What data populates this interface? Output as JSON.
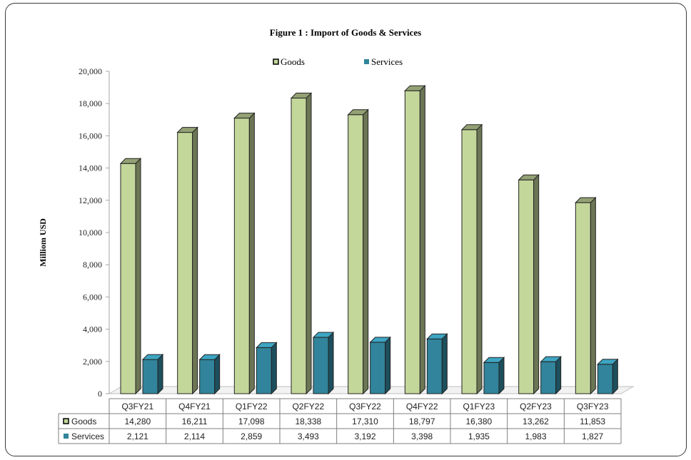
{
  "chart_data": {
    "type": "bar",
    "title": "Figure 1 : Import of Goods & Services",
    "xlabel": "",
    "ylabel": "Milliom USD",
    "ylim": [
      0,
      20000
    ],
    "yticks": [
      0,
      2000,
      4000,
      6000,
      8000,
      10000,
      12000,
      14000,
      16000,
      18000,
      20000
    ],
    "ytick_labels": [
      "0",
      "2,000",
      "4,000",
      "6,000",
      "8,000",
      "10,000",
      "12,000",
      "14,000",
      "16,000",
      "18,000",
      "20,000"
    ],
    "categories": [
      "Q3FY21",
      "Q4FY21",
      "Q1FY22",
      "Q2FY22",
      "Q3FY22",
      "Q4FY22",
      "Q1FY23",
      "Q2FY23",
      "Q3FY23"
    ],
    "series": [
      {
        "name": "Goods",
        "color": "#c4d79b",
        "values": [
          14280,
          16211,
          17098,
          18338,
          17310,
          18797,
          16380,
          13262,
          11853
        ],
        "value_labels": [
          "14,280",
          "16,211",
          "17,098",
          "18,338",
          "17,310",
          "18,797",
          "16,380",
          "13,262",
          "11,853"
        ]
      },
      {
        "name": "Services",
        "color": "#31849b",
        "values": [
          2121,
          2114,
          2859,
          3493,
          3192,
          3398,
          1935,
          1983,
          1827
        ],
        "value_labels": [
          "2,121",
          "2,114",
          "2,859",
          "3,493",
          "3,192",
          "3,398",
          "1,935",
          "1,983",
          "1,827"
        ]
      }
    ],
    "legend": "top-center",
    "grid": false,
    "data_table": true,
    "style": "3d-columns"
  }
}
